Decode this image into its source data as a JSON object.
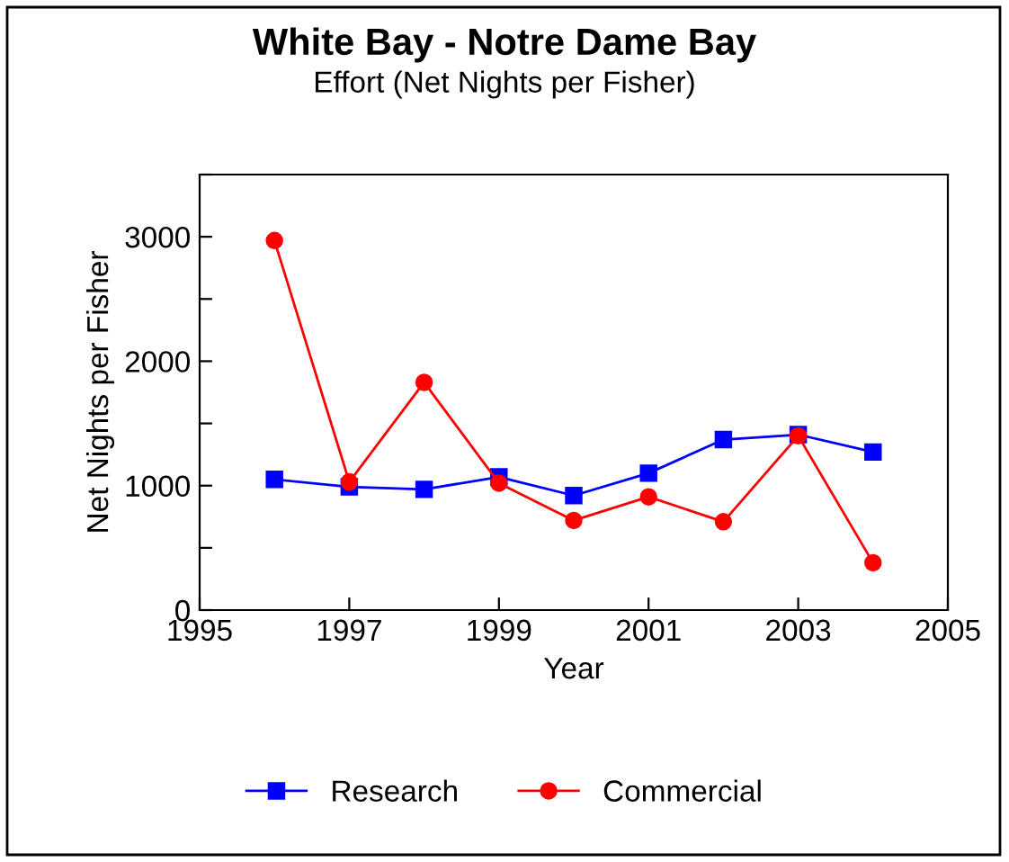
{
  "chart_data": {
    "type": "line",
    "title": "White Bay - Notre Dame Bay",
    "subtitle": "Effort (Net Nights per Fisher)",
    "xlabel": "Year",
    "ylabel": "Net Nights per Fisher",
    "x": [
      1996,
      1997,
      1998,
      1999,
      2000,
      2001,
      2002,
      2003,
      2004
    ],
    "series": [
      {
        "name": "Research",
        "color": "#0000ff",
        "marker": "square",
        "values": [
          1050,
          990,
          970,
          1070,
          920,
          1100,
          1370,
          1410,
          1270
        ]
      },
      {
        "name": "Commercial",
        "color": "#ff0000",
        "marker": "circle",
        "values": [
          2970,
          1030,
          1830,
          1020,
          720,
          910,
          710,
          1400,
          380
        ]
      }
    ],
    "xlim": [
      1995,
      2005
    ],
    "xticks": [
      1995,
      1997,
      1999,
      2001,
      2003,
      2005
    ],
    "ylim": [
      0,
      3500
    ],
    "yticks": [
      0,
      {
        "value": 500,
        "label": null
      },
      1000,
      {
        "value": 1500,
        "label": null
      },
      2000,
      {
        "value": 2500,
        "label": null
      },
      3000,
      {
        "value": 3500,
        "label": null
      }
    ],
    "grid": false,
    "legend": "bottom",
    "line_style": "solid"
  }
}
